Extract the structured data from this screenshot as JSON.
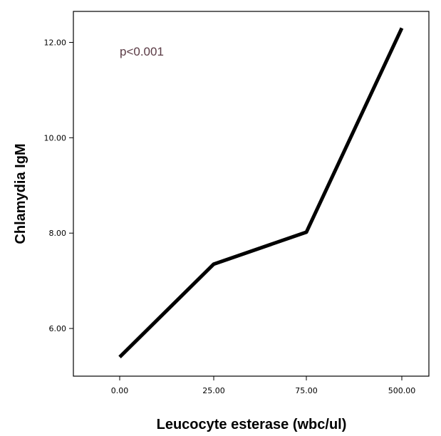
{
  "chart_data": {
    "type": "line",
    "categories": [
      "0.00",
      "25.00",
      "75.00",
      "500.00"
    ],
    "series": [
      {
        "values": [
          5.4,
          7.35,
          8.02,
          12.3
        ]
      }
    ],
    "xlabel": "Leucocyte esterase (wbc/ul)",
    "ylabel": "Chlamydia IgM",
    "yticks": [
      "6.00",
      "8.00",
      "10.00",
      "12.00"
    ],
    "ytick_values": [
      6,
      8,
      10,
      12
    ],
    "ylim": [
      5.0,
      12.65
    ],
    "annotation": "p<0.001",
    "grid": false,
    "line_color": "#000000",
    "annotation_color": "#5a3a44"
  }
}
